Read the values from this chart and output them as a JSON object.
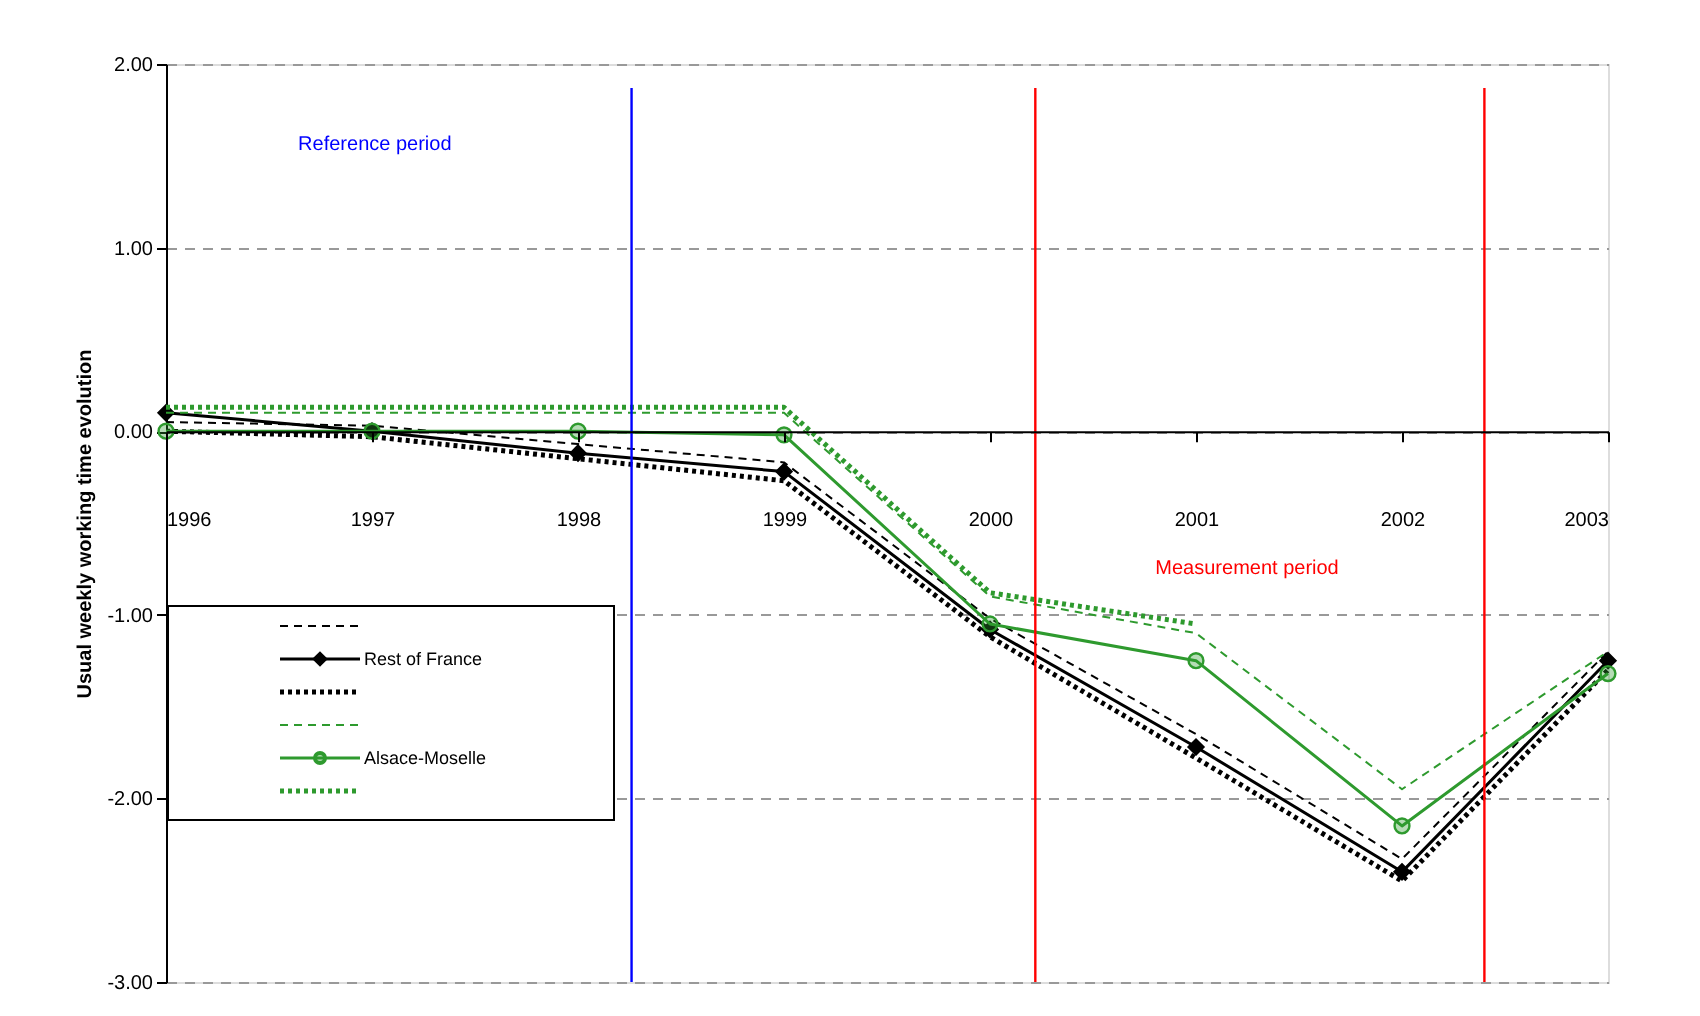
{
  "chart_data": {
    "type": "line",
    "ylabel": "Usual weekly working time evolution",
    "x": [
      1996,
      1997,
      1998,
      1999,
      2000,
      2001,
      2002,
      2003
    ],
    "xlim": [
      1996,
      2003
    ],
    "xticks": [
      1996,
      1997,
      1998,
      1999,
      2000,
      2001,
      2002,
      2003
    ],
    "ylim": [
      -3,
      2
    ],
    "yticks": [
      {
        "value": -3,
        "label": "-3.00"
      },
      {
        "value": -2,
        "label": "-2.00"
      },
      {
        "value": -1,
        "label": "-1.00"
      },
      {
        "value": 0,
        "label": "0.00"
      },
      {
        "value": 1,
        "label": "1.00"
      },
      {
        "value": 2,
        "label": "2.00"
      }
    ],
    "grid": "y",
    "legend": "bottom left",
    "series": [
      {
        "color": "#000000",
        "line_style": "dashed",
        "marker": "none",
        "values": [
          0.05,
          0.03,
          -0.07,
          -0.17,
          -1.02,
          -1.65,
          -2.33,
          -1.2
        ]
      },
      {
        "name": "Rest of France",
        "color": "#000000",
        "line_style": "solid",
        "marker": "diamond",
        "values": [
          0.1,
          0.0,
          -0.12,
          -0.22,
          -1.08,
          -1.72,
          -2.4,
          -1.25
        ]
      },
      {
        "color": "#000000",
        "line_style": "dotted",
        "marker": "none",
        "values": [
          0.0,
          -0.03,
          -0.15,
          -0.27,
          -1.12,
          -1.78,
          -2.45,
          -1.3
        ]
      },
      {
        "color": "#2e9a2e",
        "line_style": "dashed",
        "marker": "none",
        "values": [
          0.1,
          0.1,
          0.1,
          0.1,
          -0.9,
          -1.1,
          -1.95,
          -1.2
        ]
      },
      {
        "name": "Alsace-Moselle",
        "color": "#2e9a2e",
        "line_style": "solid",
        "marker": "circle",
        "values": [
          0.0,
          0.0,
          0.0,
          -0.02,
          -1.05,
          -1.25,
          -2.15,
          -1.32
        ]
      },
      {
        "color": "#2e9a2e",
        "line_style": "dotted",
        "marker": "none",
        "values": [
          0.13,
          0.13,
          0.13,
          0.13,
          -0.88,
          -1.05,
          null,
          null
        ]
      }
    ],
    "ref_lines": [
      {
        "axis": "x",
        "value": 1998.26,
        "label": "Reference period",
        "color": "#0000ff"
      },
      {
        "axis": "x",
        "value": 2000.22,
        "label": "Measurement period",
        "color": "#ff0000"
      },
      {
        "axis": "x",
        "value": 2002.4,
        "color": "#ff0000"
      }
    ]
  }
}
